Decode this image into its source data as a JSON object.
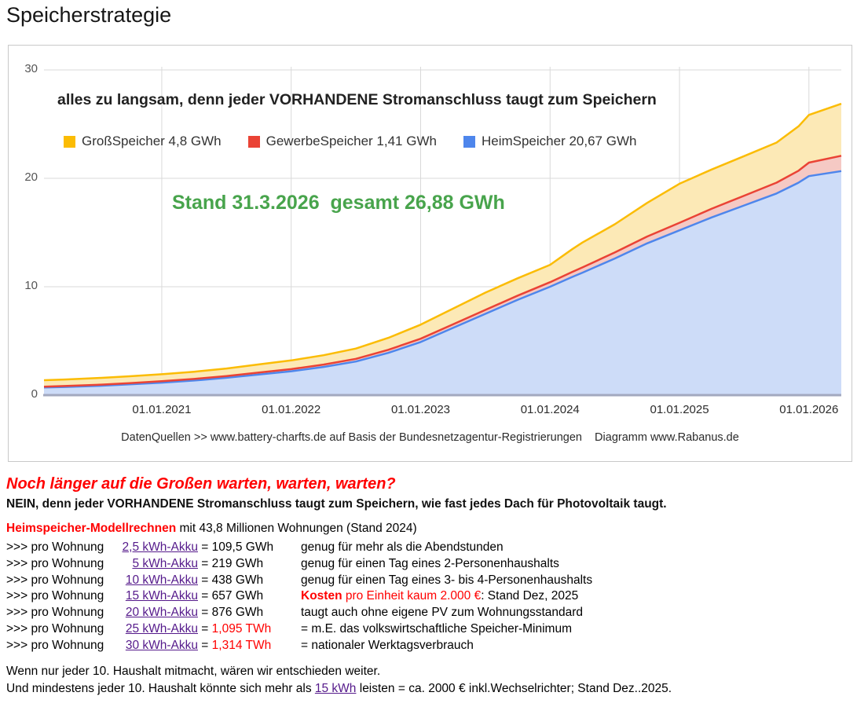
{
  "title": "Speicherstrategie",
  "colors": {
    "red_text": "#ff0000",
    "link": "#551A8B",
    "green": "#48a44c"
  },
  "chart_data": {
    "type": "area",
    "stacked": true,
    "headline": "alles zu langsam, denn jeder VORHANDENE Stromanschluss taugt zum Speichern",
    "annotation": "Stand 31.3.2026  gesamt 26,88 GWh",
    "caption": "DatenQuellen >> www.battery-charfts.de auf Basis der Bundesnetzagentur-Registrierungen    Diagramm www.Rabanus.de",
    "grid": true,
    "legend_position": "top",
    "x_range": [
      2020.09,
      2026.25
    ],
    "ylim": [
      0,
      30
    ],
    "y_ticks": [
      0,
      10,
      20,
      30
    ],
    "x_tick_years": [
      2021,
      2022,
      2023,
      2024,
      2025,
      2026
    ],
    "x_tick_labels": [
      "01.01.2021",
      "01.01.2022",
      "01.01.2023",
      "01.01.2024",
      "01.01.2025",
      "01.01.2026"
    ],
    "legend": [
      {
        "label": "GroßSpeicher 4,8 GWh",
        "color": "#fbbc04"
      },
      {
        "label": "GewerbeSpeicher 1,41 GWh",
        "color": "#ea4335"
      },
      {
        "label": "HeimSpeicher 20,67 GWh",
        "color": "#4e86ec"
      }
    ],
    "x": [
      2020.09,
      2020.25,
      2020.5,
      2020.75,
      2021.0,
      2021.25,
      2021.5,
      2021.75,
      2022.0,
      2022.25,
      2022.5,
      2022.75,
      2023.0,
      2023.25,
      2023.5,
      2023.75,
      2024.0,
      2024.17,
      2024.25,
      2024.5,
      2024.75,
      2025.0,
      2025.25,
      2025.5,
      2025.75,
      2025.92,
      2026.0,
      2026.25
    ],
    "series": [
      {
        "name": "HeimSpeicher",
        "final_value_gwh": 20.67,
        "color": "#4e86ec",
        "fill": "#cddcf8",
        "values": [
          0.7,
          0.75,
          0.85,
          1.0,
          1.15,
          1.35,
          1.6,
          1.9,
          2.2,
          2.6,
          3.1,
          3.9,
          4.9,
          6.2,
          7.5,
          8.8,
          10.0,
          10.9,
          11.3,
          12.6,
          14.0,
          15.2,
          16.4,
          17.5,
          18.6,
          19.6,
          20.2,
          20.67
        ]
      },
      {
        "name": "GewerbeSpeicher",
        "final_value_gwh": 1.41,
        "color": "#ea4335",
        "fill": "#f5c9c4",
        "values": [
          0.08,
          0.09,
          0.1,
          0.11,
          0.13,
          0.14,
          0.16,
          0.18,
          0.2,
          0.22,
          0.25,
          0.28,
          0.3,
          0.33,
          0.36,
          0.38,
          0.42,
          0.46,
          0.48,
          0.56,
          0.63,
          0.7,
          0.8,
          0.9,
          1.0,
          1.1,
          1.25,
          1.41
        ]
      },
      {
        "name": "GroßSpeicher",
        "final_value_gwh": 4.8,
        "color": "#fbbc04",
        "fill": "#fce9b6",
        "values": [
          0.6,
          0.6,
          0.62,
          0.63,
          0.65,
          0.67,
          0.7,
          0.75,
          0.8,
          0.86,
          0.95,
          1.1,
          1.3,
          1.45,
          1.6,
          1.6,
          1.6,
          2.1,
          2.3,
          2.6,
          3.1,
          3.6,
          3.62,
          3.65,
          3.7,
          4.1,
          4.4,
          4.8
        ]
      }
    ],
    "total_gwh": 26.88,
    "stand_date": "31.3.2026"
  },
  "below": {
    "question": "Noch länger auf die Großen warten, warten, warten?",
    "answer": "NEIN, denn jeder VORHANDENE Stromanschluss taugt zum Speichern, wie fast jedes Dach für Photovoltaik taugt.",
    "model_intro_parts": [
      {
        "text": "Heimspeicher-Modellrechnen",
        "style": "red-bold"
      },
      {
        "text": " mit 43,8 Millionen Wohnungen (Stand 2024)",
        "style": "normal"
      }
    ],
    "row_prefix": ">>> pro Wohnung",
    "rows": [
      {
        "link": "2,5 kWh-Akku",
        "value": "109,5 GWh",
        "value_red": false,
        "note": [
          {
            "text": "genug für mehr als die Abendstunden",
            "style": "normal"
          }
        ]
      },
      {
        "link": "5 kWh-Akku",
        "value": "219 GWh",
        "value_red": false,
        "note": [
          {
            "text": "genug für einen Tag eines 2-Personenhaushalts",
            "style": "normal"
          }
        ]
      },
      {
        "link": "10 kWh-Akku",
        "value": "438 GWh",
        "value_red": false,
        "note": [
          {
            "text": "genug für einen Tag eines 3- bis 4-Personenhaushalts",
            "style": "normal"
          }
        ]
      },
      {
        "link": "15 kWh-Akku",
        "value": "657 GWh",
        "value_red": false,
        "note": [
          {
            "text": "Kosten",
            "style": "red-bold"
          },
          {
            "text": " pro Einheit kaum 2.000 €",
            "style": "red"
          },
          {
            "text": ": Stand Dez, 2025",
            "style": "normal"
          }
        ]
      },
      {
        "link": "20 kWh-Akku",
        "value": "876 GWh",
        "value_red": false,
        "note": [
          {
            "text": "taugt auch ohne eigene PV zum Wohnungsstandard",
            "style": "normal"
          }
        ]
      },
      {
        "link": "25 kWh-Akku",
        "value": "1,095 TWh",
        "value_red": true,
        "note": [
          {
            "text": "= m.E. das volkswirtschaftliche Speicher-Minimum",
            "style": "normal"
          }
        ]
      },
      {
        "link": "30 kWh-Akku",
        "value": "1,314 TWh",
        "value_red": true,
        "note": [
          {
            "text": "= nationaler Werktagsverbrauch",
            "style": "normal"
          }
        ]
      }
    ],
    "footer_line1": "Wenn nur jeder 10. Haushalt mitmacht, wären wir entschieden weiter.",
    "footer_line2_parts": [
      {
        "text": "Und mindestens jeder 10. Haushalt könnte sich mehr als ",
        "style": "normal"
      },
      {
        "text": "15 kWh",
        "style": "link"
      },
      {
        "text": " leisten = ca. 2000 € inkl.Wechselrichter; Stand Dez..2025.",
        "style": "normal"
      }
    ]
  }
}
